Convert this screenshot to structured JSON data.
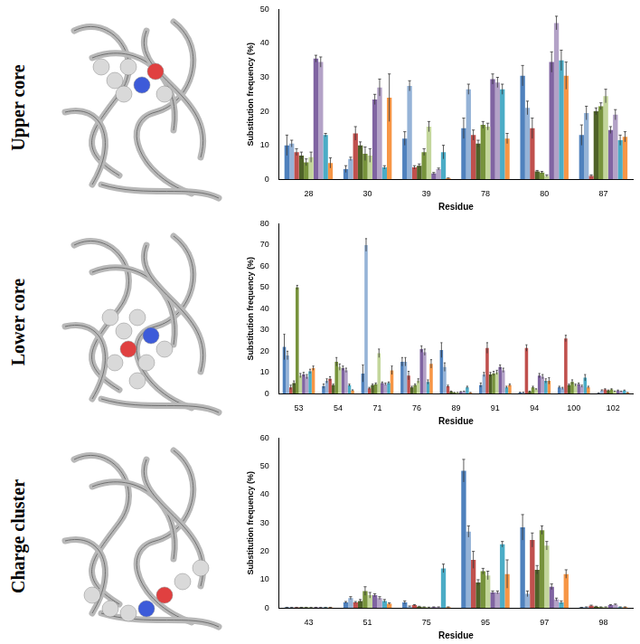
{
  "row_labels": [
    "Upper core",
    "Lower core",
    "Charge cluster"
  ],
  "chart_data": [
    {
      "type": "bar",
      "x_label": "Residue",
      "y_label": "Substitution frequency (%)",
      "categories": [
        "28",
        "30",
        "39",
        "78",
        "80",
        "87"
      ],
      "ylim": [
        0,
        50
      ],
      "yticks": [
        0,
        10,
        20,
        30,
        40,
        50
      ],
      "grid": false,
      "series": [
        {
          "color": "#4f81bd",
          "values": [
            10,
            3,
            12,
            15,
            30.5,
            13
          ],
          "errors": [
            3,
            1,
            2,
            3,
            3,
            3
          ]
        },
        {
          "color": "#95b3d7",
          "values": [
            10.5,
            6,
            27.5,
            26.5,
            21,
            19.5
          ],
          "errors": [
            1,
            0.5,
            1.5,
            1.5,
            2,
            2
          ]
        },
        {
          "color": "#c0504d",
          "values": [
            8,
            13.5,
            3.5,
            13,
            15,
            1
          ],
          "errors": [
            1,
            2,
            0.5,
            1.5,
            3,
            0.3
          ]
        },
        {
          "color": "#4f6228",
          "values": [
            7,
            10,
            4,
            10.5,
            2.3,
            20
          ],
          "errors": [
            1,
            1,
            0.5,
            1,
            0.3,
            1
          ]
        },
        {
          "color": "#77933c",
          "values": [
            5,
            7.5,
            8,
            16,
            2,
            21.5
          ],
          "errors": [
            1,
            2,
            1,
            1,
            0.3,
            1
          ]
        },
        {
          "color": "#c3d69b",
          "values": [
            6.5,
            7,
            15.5,
            15.5,
            1,
            24.5
          ],
          "errors": [
            1.5,
            2,
            1.5,
            1,
            0.3,
            2
          ]
        },
        {
          "color": "#8064a2",
          "values": [
            35.5,
            23.5,
            1.7,
            29.5,
            34.5,
            14.5
          ],
          "errors": [
            1,
            1.5,
            0.3,
            1.5,
            3,
            1
          ]
        },
        {
          "color": "#b3a2c7",
          "values": [
            34.5,
            27,
            3,
            28.5,
            46,
            19
          ],
          "errors": [
            1.5,
            2.5,
            0.3,
            1.5,
            2,
            1.5
          ]
        },
        {
          "color": "#4bacc6",
          "values": [
            13,
            3.5,
            8,
            26.5,
            35,
            11.5
          ],
          "errors": [
            0.5,
            0.5,
            2,
            1.5,
            3,
            1.5
          ]
        },
        {
          "color": "#f79646",
          "values": [
            4.8,
            24,
            0.3,
            12,
            30.5,
            12.5
          ],
          "errors": [
            1.5,
            7,
            0.1,
            1.5,
            4,
            1.5
          ]
        }
      ]
    },
    {
      "type": "bar",
      "x_label": "Residue",
      "y_label": "Substitution frequency (%)",
      "categories": [
        "53",
        "54",
        "71",
        "76",
        "89",
        "91",
        "94",
        "100",
        "102"
      ],
      "ylim": [
        0,
        80
      ],
      "yticks": [
        0,
        10,
        20,
        30,
        40,
        50,
        60,
        70,
        80
      ],
      "grid": false,
      "series": [
        {
          "color": "#4f81bd",
          "values": [
            22,
            3.5,
            9.5,
            15,
            20.5,
            4,
            0.5,
            3,
            0.3
          ],
          "errors": [
            6,
            1,
            4,
            2,
            3.5,
            1,
            0.2,
            0.5,
            0.1
          ]
        },
        {
          "color": "#95b3d7",
          "values": [
            18,
            6,
            70,
            15,
            12.5,
            9,
            0.5,
            2.5,
            1.5
          ],
          "errors": [
            2,
            1,
            3,
            2,
            2,
            1,
            0.2,
            0.5,
            0.3
          ]
        },
        {
          "color": "#c0504d",
          "values": [
            3,
            7,
            2.5,
            8.5,
            3.5,
            21.5,
            21.5,
            26,
            2
          ],
          "errors": [
            1,
            1,
            0.5,
            2,
            0.5,
            2.5,
            1.5,
            1.5,
            0.3
          ]
        },
        {
          "color": "#4f6228",
          "values": [
            5,
            4,
            4,
            3,
            1,
            9,
            1,
            4,
            1.5
          ],
          "errors": [
            1,
            0.5,
            0.5,
            0.5,
            0.2,
            1,
            0.2,
            0.5,
            0.2
          ]
        },
        {
          "color": "#77933c",
          "values": [
            50,
            15,
            4.5,
            4,
            0.5,
            9.5,
            3,
            5.5,
            2
          ],
          "errors": [
            1,
            2,
            0.5,
            0.5,
            0.1,
            1,
            0.5,
            1,
            0.3
          ]
        },
        {
          "color": "#c3d69b",
          "values": [
            8.5,
            12.5,
            19,
            6,
            0.5,
            10,
            2,
            4,
            1
          ],
          "errors": [
            1,
            1.5,
            2,
            1,
            0.1,
            1,
            0.3,
            0.5,
            0.2
          ]
        },
        {
          "color": "#8064a2",
          "values": [
            9,
            12,
            5,
            21,
            0.8,
            12.5,
            8.5,
            4.5,
            1.5
          ],
          "errors": [
            1,
            1,
            0.5,
            1.5,
            0.2,
            1,
            1,
            0.5,
            0.2
          ]
        },
        {
          "color": "#b3a2c7",
          "values": [
            8,
            11,
            4.5,
            19.5,
            1,
            11,
            8,
            3.5,
            1
          ],
          "errors": [
            1,
            1,
            0.5,
            1.5,
            0.2,
            1,
            1,
            0.5,
            0.2
          ]
        },
        {
          "color": "#4bacc6",
          "values": [
            10.5,
            4,
            5,
            5.5,
            3,
            3,
            6,
            7.5,
            1.5
          ],
          "errors": [
            1,
            0.5,
            0.5,
            1,
            0.5,
            0.5,
            1,
            1.5,
            0.2
          ]
        },
        {
          "color": "#f79646",
          "values": [
            12,
            1.5,
            11,
            14,
            0.5,
            4,
            6,
            3,
            0.5
          ],
          "errors": [
            1,
            0.3,
            2,
            2,
            0.1,
            0.5,
            1.5,
            0.5,
            0.1
          ]
        }
      ]
    },
    {
      "type": "bar",
      "x_label": "Residue",
      "y_label": "Substitution frequency (%)",
      "categories": [
        "43",
        "51",
        "75",
        "95",
        "97",
        "98"
      ],
      "ylim": [
        0,
        60
      ],
      "yticks": [
        0,
        10,
        20,
        30,
        40,
        50,
        60
      ],
      "grid": false,
      "series": [
        {
          "color": "#4f81bd",
          "values": [
            0.2,
            2,
            2,
            48.5,
            28.5,
            0.2
          ],
          "errors": [
            0.05,
            0.3,
            0.5,
            4,
            4.5,
            0.05
          ]
        },
        {
          "color": "#95b3d7",
          "values": [
            0.2,
            3.5,
            0.5,
            27,
            5,
            0.3
          ],
          "errors": [
            0.05,
            0.5,
            0.2,
            2,
            1,
            0.1
          ]
        },
        {
          "color": "#c0504d",
          "values": [
            0.2,
            2,
            1,
            17,
            24,
            0.8
          ],
          "errors": [
            0.05,
            0.3,
            0.2,
            3,
            2.5,
            0.2
          ]
        },
        {
          "color": "#4f6228",
          "values": [
            0.2,
            2.5,
            0.5,
            9,
            13.5,
            0.5
          ],
          "errors": [
            0.05,
            0.5,
            0.1,
            1,
            1.5,
            0.1
          ]
        },
        {
          "color": "#77933c",
          "values": [
            0.2,
            6,
            0.3,
            13,
            27.5,
            0.3
          ],
          "errors": [
            0.05,
            1.5,
            0.1,
            1,
            1.5,
            0.1
          ]
        },
        {
          "color": "#c3d69b",
          "values": [
            0.2,
            4.5,
            0.2,
            11.5,
            22,
            0.3
          ],
          "errors": [
            0.05,
            1,
            0.1,
            1.5,
            1.5,
            0.1
          ]
        },
        {
          "color": "#8064a2",
          "values": [
            0.2,
            4.5,
            0.3,
            5.5,
            7.5,
            1
          ],
          "errors": [
            0.05,
            0.5,
            0.1,
            0.5,
            1,
            0.2
          ]
        },
        {
          "color": "#b3a2c7",
          "values": [
            0.2,
            3.5,
            0.3,
            5.5,
            3,
            1.2
          ],
          "errors": [
            0.05,
            0.5,
            0.1,
            0.5,
            0.5,
            0.2
          ]
        },
        {
          "color": "#4bacc6",
          "values": [
            0.2,
            2.5,
            14,
            22.5,
            2,
            0.3
          ],
          "errors": [
            0.05,
            0.5,
            1.5,
            1,
            0.5,
            0.1
          ]
        },
        {
          "color": "#f79646",
          "values": [
            0.2,
            1.5,
            0.3,
            12,
            12,
            0.3
          ],
          "errors": [
            0.05,
            0.3,
            0.1,
            5,
            1.5,
            0.1
          ]
        }
      ]
    }
  ]
}
